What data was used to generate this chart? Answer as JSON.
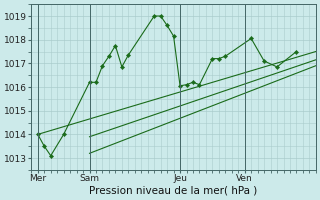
{
  "background_color": "#cceaea",
  "grid_color": "#aacccc",
  "line_color": "#1a6b1a",
  "xlabel": "Pression niveau de la mer( hPa )",
  "ylim": [
    1012.5,
    1019.5
  ],
  "yticks": [
    1013,
    1014,
    1015,
    1016,
    1017,
    1018,
    1019
  ],
  "xtick_labels": [
    "Mer",
    "Sam",
    "Jeu",
    "Ven"
  ],
  "xtick_positions": [
    0,
    8,
    22,
    32
  ],
  "vline_positions": [
    0,
    8,
    22,
    32
  ],
  "xlim": [
    -1,
    43
  ],
  "series1_x": [
    0,
    1,
    2,
    4,
    8,
    9,
    10,
    11,
    12,
    13,
    14,
    18,
    19,
    20,
    21,
    22,
    23,
    24,
    25,
    27,
    28,
    29,
    33,
    35,
    37,
    40
  ],
  "series1_y": [
    1014.0,
    1013.5,
    1013.1,
    1014.0,
    1016.2,
    1016.2,
    1016.9,
    1017.3,
    1017.75,
    1016.85,
    1017.35,
    1019.0,
    1019.0,
    1018.6,
    1018.15,
    1016.05,
    1016.1,
    1016.2,
    1016.1,
    1017.2,
    1017.2,
    1017.3,
    1018.05,
    1017.1,
    1016.85,
    1017.5
  ],
  "series2_x": [
    0,
    43
  ],
  "series2_y": [
    1014.0,
    1017.5
  ],
  "series3_x": [
    8,
    43
  ],
  "series3_y": [
    1013.9,
    1017.15
  ],
  "series4_x": [
    8,
    43
  ],
  "series4_y": [
    1013.2,
    1016.9
  ],
  "n_points": 26
}
